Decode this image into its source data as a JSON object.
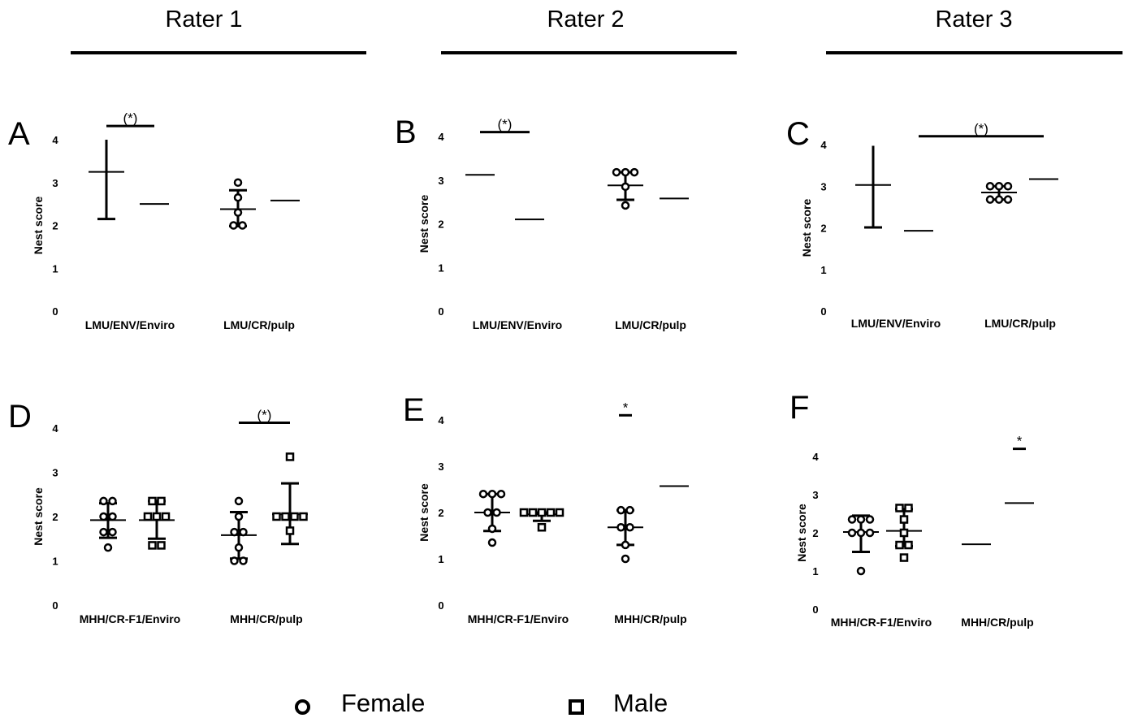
{
  "raters": [
    {
      "label": "Rater 1"
    },
    {
      "label": "Rater 2"
    },
    {
      "label": "Rater 3"
    }
  ],
  "legend": [
    {
      "label": "Female",
      "marker": "circle"
    },
    {
      "label": "Male",
      "marker": "square"
    }
  ],
  "chart_data": [
    {
      "panel": "A",
      "type": "scatter",
      "ylabel": "Nest score",
      "ylim": [
        0,
        4
      ],
      "yticks": [
        "0",
        "1",
        "2",
        "3",
        "4"
      ],
      "categories": [
        "LMU/ENV/Enviro",
        "LMU/CR/pulp"
      ],
      "groups": [
        {
          "category": "LMU/ENV/Enviro",
          "marker": "circle",
          "mean": 3.25,
          "error": [
            2.15,
            4.0
          ],
          "points": []
        },
        {
          "category": "LMU/ENV/Enviro",
          "marker": "square",
          "mean": 2.5,
          "error": null,
          "points": []
        },
        {
          "category": "LMU/CR/pulp",
          "marker": "circle",
          "mean": 2.38,
          "error": [
            1.98,
            2.82
          ],
          "points": [
            3.0,
            2.65,
            2.3,
            2.0,
            2.0
          ]
        },
        {
          "category": "LMU/CR/pulp",
          "marker": "square",
          "mean": 2.58,
          "error": null,
          "points": []
        }
      ],
      "significance": [
        {
          "label": "(*)",
          "level": 4.32,
          "from": 0,
          "to": 1
        }
      ]
    },
    {
      "panel": "B",
      "type": "scatter",
      "ylabel": "Nest score",
      "ylim": [
        0,
        4
      ],
      "yticks": [
        "0",
        "1",
        "2",
        "3",
        "4"
      ],
      "categories": [
        "LMU/ENV/Enviro",
        "LMU/CR/pulp"
      ],
      "groups": [
        {
          "category": "LMU/ENV/Enviro",
          "marker": "circle",
          "mean": 3.12,
          "error": null,
          "points": []
        },
        {
          "category": "LMU/ENV/Enviro",
          "marker": "square",
          "mean": 2.1,
          "error": null,
          "points": []
        },
        {
          "category": "LMU/CR/pulp",
          "marker": "circle",
          "mean": 2.88,
          "error": [
            2.55,
            3.18
          ],
          "points": [
            3.18,
            3.18,
            3.18,
            2.85,
            2.42
          ]
        },
        {
          "category": "LMU/CR/pulp",
          "marker": "square",
          "mean": 2.58,
          "error": null,
          "points": []
        }
      ],
      "significance": [
        {
          "label": "(*)",
          "level": 4.1,
          "from": 0,
          "to": 1
        }
      ]
    },
    {
      "panel": "C",
      "type": "scatter",
      "ylabel": "Nest score",
      "ylim": [
        0,
        4
      ],
      "yticks": [
        "0",
        "1",
        "2",
        "3",
        "4"
      ],
      "categories": [
        "LMU/ENV/Enviro",
        "LMU/CR/pulp"
      ],
      "groups": [
        {
          "category": "LMU/ENV/Enviro",
          "marker": "circle",
          "mean": 3.03,
          "error": [
            2.01,
            3.97
          ],
          "points": []
        },
        {
          "category": "LMU/ENV/Enviro",
          "marker": "square",
          "mean": 1.93,
          "error": null,
          "points": []
        },
        {
          "category": "LMU/CR/pulp",
          "marker": "circle",
          "mean": 2.85,
          "error": [
            2.68,
            3.0
          ],
          "points": [
            3.0,
            3.0,
            3.0,
            2.68,
            2.68,
            2.68
          ]
        },
        {
          "category": "LMU/CR/pulp",
          "marker": "square",
          "mean": 3.17,
          "error": null,
          "points": []
        }
      ],
      "significance": [
        {
          "label": "(*)",
          "level": 4.2,
          "from": 1,
          "to": 3
        }
      ]
    },
    {
      "panel": "D",
      "type": "scatter",
      "ylabel": "Nest score",
      "ylim": [
        0,
        4
      ],
      "yticks": [
        "0",
        "1",
        "2",
        "3",
        "4"
      ],
      "categories": [
        "MHH/CR-F1/Enviro",
        "MHH/CR/pulp"
      ],
      "groups": [
        {
          "category": "MHH/CR-F1/Enviro",
          "marker": "circle",
          "mean": 1.92,
          "error": [
            1.52,
            2.3
          ],
          "points": [
            2.35,
            2.35,
            2.0,
            2.0,
            1.65,
            1.65,
            1.3
          ]
        },
        {
          "category": "MHH/CR-F1/Enviro",
          "marker": "square",
          "mean": 1.92,
          "error": [
            1.5,
            2.35
          ],
          "points": [
            2.35,
            2.35,
            2.0,
            2.0,
            2.0,
            1.35,
            1.35
          ]
        },
        {
          "category": "MHH/CR/pulp",
          "marker": "circle",
          "mean": 1.58,
          "error": [
            1.05,
            2.1
          ],
          "points": [
            2.35,
            2.0,
            1.65,
            1.65,
            1.3,
            1.0,
            1.0
          ]
        },
        {
          "category": "MHH/CR/pulp",
          "marker": "square",
          "mean": 2.05,
          "error": [
            1.38,
            2.75
          ],
          "points": [
            3.35,
            2.0,
            2.0,
            2.0,
            2.0,
            1.68
          ]
        }
      ],
      "significance": [
        {
          "label": "(*)",
          "level": 4.12,
          "from": 2,
          "to": 3
        }
      ]
    },
    {
      "panel": "E",
      "type": "scatter",
      "ylabel": "Nest score",
      "ylim": [
        0,
        4
      ],
      "yticks": [
        "0",
        "1",
        "2",
        "3",
        "4"
      ],
      "categories": [
        "MHH/CR-F1/Enviro",
        "MHH/CR/pulp"
      ],
      "groups": [
        {
          "category": "MHH/CR-F1/Enviro",
          "marker": "circle",
          "mean": 2.0,
          "error": [
            1.6,
            2.4
          ],
          "points": [
            2.4,
            2.4,
            2.4,
            2.0,
            2.0,
            1.65,
            1.35
          ]
        },
        {
          "category": "MHH/CR-F1/Enviro",
          "marker": "square",
          "mean": 1.96,
          "error": [
            1.82,
            2.0
          ],
          "points": [
            2.0,
            2.0,
            2.0,
            2.0,
            2.0,
            1.68
          ]
        },
        {
          "category": "MHH/CR/pulp",
          "marker": "circle",
          "mean": 1.68,
          "error": [
            1.3,
            2.05
          ],
          "points": [
            2.05,
            2.05,
            1.68,
            1.68,
            1.3,
            1.0
          ]
        },
        {
          "category": "MHH/CR/pulp",
          "marker": "square",
          "mean": 2.57,
          "error": null,
          "points": []
        }
      ],
      "significance": [
        {
          "label": "*",
          "level": 4.1,
          "from": 2,
          "to": 2
        }
      ]
    },
    {
      "panel": "F",
      "type": "scatter",
      "ylabel": "Nest score",
      "ylim": [
        0,
        4
      ],
      "yticks": [
        "0",
        "1",
        "2",
        "3",
        "4"
      ],
      "categories": [
        "MHH/CR-F1/Enviro",
        "MHH/CR/pulp"
      ],
      "groups": [
        {
          "category": "MHH/CR-F1/Enviro",
          "marker": "circle",
          "mean": 2.02,
          "error": [
            1.5,
            2.45
          ],
          "points": [
            2.35,
            2.35,
            2.35,
            2.0,
            2.0,
            2.0,
            1.0
          ]
        },
        {
          "category": "MHH/CR-F1/Enviro",
          "marker": "square",
          "mean": 2.05,
          "error": [
            1.65,
            2.62
          ],
          "points": [
            2.65,
            2.65,
            2.35,
            2.0,
            1.68,
            1.68,
            1.35
          ]
        },
        {
          "category": "MHH/CR/pulp",
          "marker": "circle",
          "mean": 1.7,
          "error": null,
          "points": []
        },
        {
          "category": "MHH/CR/pulp",
          "marker": "square",
          "mean": 2.78,
          "error": null,
          "points": []
        }
      ],
      "significance": [
        {
          "label": "*",
          "level": 4.2,
          "from": 3,
          "to": 3
        }
      ]
    }
  ]
}
